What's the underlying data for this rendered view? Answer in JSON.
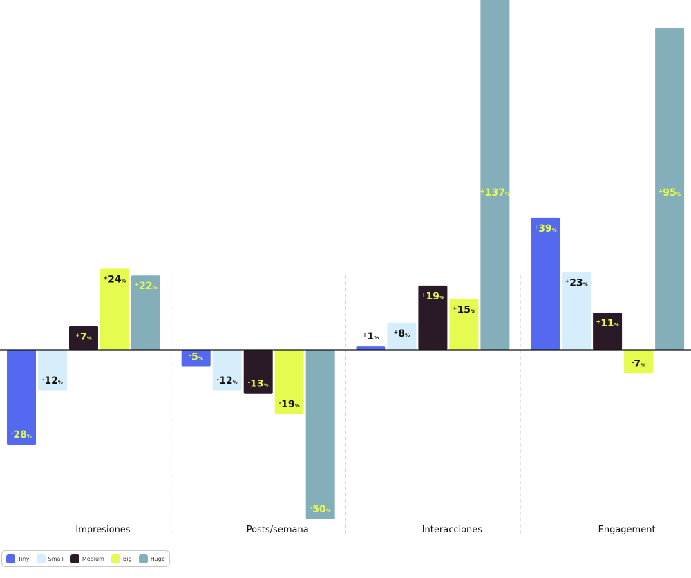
{
  "chart_data": {
    "type": "bar",
    "title": "",
    "xlabel": "",
    "ylabel": "",
    "unit": "%",
    "categories": [
      "Impresiones",
      "Posts/semana",
      "Interacciones",
      "Engagement"
    ],
    "series": [
      {
        "name": "Tiny",
        "color": "#5468F0",
        "label_color": "#E5FB4F",
        "values": [
          -28,
          -5,
          1,
          39
        ]
      },
      {
        "name": "Small",
        "color": "#D6EEFB",
        "label_color": "#111111",
        "values": [
          -12,
          -12,
          8,
          23
        ]
      },
      {
        "name": "Medium",
        "color": "#2A1A28",
        "label_color": "#E5FB4F",
        "values": [
          7,
          -13,
          19,
          11
        ]
      },
      {
        "name": "Big",
        "color": "#E5FB4F",
        "label_color": "#111111",
        "values": [
          24,
          -19,
          15,
          -7
        ]
      },
      {
        "name": "Huge",
        "color": "#84AEB9",
        "label_color": "#E5FB4F",
        "values": [
          22,
          -50,
          137,
          95
        ]
      }
    ],
    "grid": false,
    "legend_position": "bottom-left"
  }
}
